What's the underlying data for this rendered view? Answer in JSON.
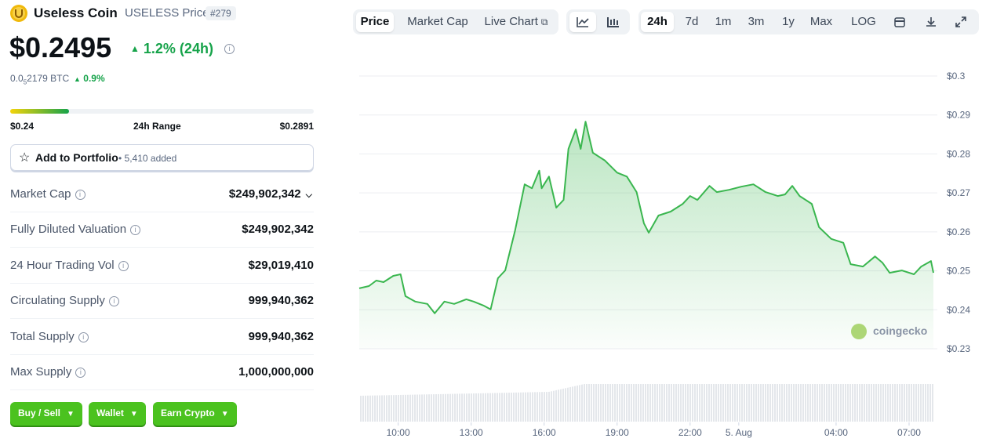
{
  "header": {
    "name": "Useless Coin",
    "symbol": "USELESS Price",
    "rank": "#279",
    "price": {
      "value": 0.2495,
      "label": "$0.2495"
    },
    "change": "1.2% (24h)",
    "btc_price": {
      "prefix": "0.0",
      "sub": "5",
      "rest": "2179 BTC"
    },
    "btc_change": "0.9%"
  },
  "range": {
    "low": {
      "value": 0.24,
      "label": "$0.24"
    },
    "high": {
      "value": 0.2891,
      "label": "$0.2891"
    },
    "label": "24h Range"
  },
  "portfolio": {
    "label": "Add to Portfolio",
    "added": "5,410 added"
  },
  "stats": [
    {
      "label": "Market Cap",
      "value": "$249,902,342"
    },
    {
      "label": "Fully Diluted Valuation",
      "value": "$249,902,342"
    },
    {
      "label": "24 Hour Trading Vol",
      "value": "$29,019,410"
    },
    {
      "label": "Circulating Supply",
      "value": "999,940,362"
    },
    {
      "label": "Total Supply",
      "value": "999,940,362"
    },
    {
      "label": "Max Supply",
      "value": "1,000,000,000"
    }
  ],
  "buttons": [
    "Buy / Sell",
    "Wallet",
    "Earn Crypto"
  ],
  "toolbar": {
    "views": [
      "Price",
      "Market Cap",
      "Live Chart"
    ],
    "active_view": 0,
    "ranges": [
      "24h",
      "7d",
      "1m",
      "3m",
      "1y",
      "Max",
      "LOG"
    ],
    "active_range": 0
  },
  "watermark": "coingecko",
  "chart_data": {
    "type": "line",
    "color": "#3ab64f",
    "grid": true,
    "x": [
      8.4,
      8.8,
      9.1,
      9.4,
      9.8,
      10.1,
      10.3,
      10.7,
      11.2,
      11.5,
      11.9,
      12.3,
      12.8,
      13.1,
      13.5,
      13.8,
      14.1,
      14.4,
      14.8,
      15.2,
      15.5,
      15.8,
      15.9,
      16.2,
      16.5,
      16.8,
      17.0,
      17.3,
      17.5,
      17.7,
      18.0,
      18.5,
      19.0,
      19.4,
      19.8,
      20.1,
      20.3,
      20.7,
      21.2,
      21.7,
      22.0,
      22.3,
      22.8,
      23.1,
      23.6,
      24.1,
      24.6,
      25.1,
      25.6,
      25.9,
      26.2,
      26.5,
      27.0,
      27.3,
      27.8,
      28.3,
      28.6,
      29.1,
      29.6,
      29.9,
      30.2,
      30.7,
      31.2,
      31.5,
      31.9,
      32.0
    ],
    "values": [
      0.2455,
      0.2461,
      0.2475,
      0.2471,
      0.2487,
      0.2491,
      0.2435,
      0.2421,
      0.2415,
      0.2391,
      0.2421,
      0.2415,
      0.2427,
      0.2421,
      0.2411,
      0.2401,
      0.2481,
      0.2501,
      0.2602,
      0.2722,
      0.2712,
      0.2757,
      0.2712,
      0.2742,
      0.2662,
      0.2682,
      0.2813,
      0.2863,
      0.2813,
      0.2883,
      0.2803,
      0.2783,
      0.2752,
      0.2742,
      0.2702,
      0.2622,
      0.2598,
      0.2642,
      0.2652,
      0.2672,
      0.2692,
      0.2682,
      0.2718,
      0.2702,
      0.2708,
      0.2716,
      0.2722,
      0.2702,
      0.2692,
      0.2696,
      0.2718,
      0.2692,
      0.2672,
      0.2612,
      0.2582,
      0.2572,
      0.2517,
      0.2511,
      0.2537,
      0.2521,
      0.2495,
      0.2501,
      0.2491,
      0.2511,
      0.2525,
      0.2495
    ],
    "xlim": [
      8.4,
      32
    ],
    "xticks": [
      {
        "value": 10,
        "label": "10:00"
      },
      {
        "value": 13,
        "label": "13:00"
      },
      {
        "value": 16,
        "label": "16:00"
      },
      {
        "value": 19,
        "label": "19:00"
      },
      {
        "value": 22,
        "label": "22:00"
      },
      {
        "value": 24,
        "label": "5. Aug"
      },
      {
        "value": 28,
        "label": "04:00"
      },
      {
        "value": 31,
        "label": "07:00"
      }
    ],
    "ylim": [
      0.23,
      0.3
    ],
    "yticks": [
      {
        "value": 0.23,
        "label": "$0.23"
      },
      {
        "value": 0.24,
        "label": "$0.24"
      },
      {
        "value": 0.25,
        "label": "$0.25"
      },
      {
        "value": 0.26,
        "label": "$0.26"
      },
      {
        "value": 0.27,
        "label": "$0.27"
      },
      {
        "value": 0.28,
        "label": "$0.28"
      },
      {
        "value": 0.29,
        "label": "$0.29"
      },
      {
        "value": 0.3,
        "label": "$0.3"
      }
    ]
  }
}
